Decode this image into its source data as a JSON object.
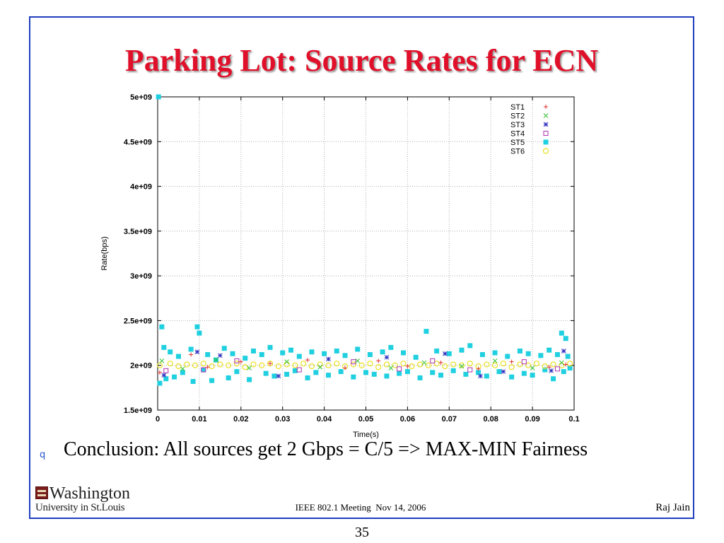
{
  "slide": {
    "title": "Parking Lot: Source Rates for ECN",
    "bullet_symbol": "q",
    "conclusion": "Conclusion: All sources get 2 Gbps = C/5 => MAX-MIN Fairness",
    "logo": {
      "line1": "Washington",
      "line2": "University in St.Louis"
    },
    "footer_center": "IEEE 802.1 Meeting  Nov 14, 2006",
    "footer_right": "Raj Jain",
    "page_number": "35"
  },
  "chart_data": {
    "type": "scatter",
    "xlabel": "Time(s)",
    "ylabel": "Rate(bps)",
    "xlim": [
      0,
      0.1
    ],
    "ylim": [
      1500000000,
      5000000000
    ],
    "x_ticks": [
      0,
      0.01,
      0.02,
      0.03,
      0.04,
      0.05,
      0.06,
      0.07,
      0.08,
      0.09,
      0.1
    ],
    "x_tick_labels": [
      "0",
      "0.01",
      "0.02",
      "0.03",
      "0.04",
      "0.05",
      "0.06",
      "0.07",
      "0.08",
      "0.09",
      "0.1"
    ],
    "y_ticks": [
      1500000000,
      2000000000,
      2500000000,
      3000000000,
      3500000000,
      4000000000,
      4500000000,
      5000000000
    ],
    "y_tick_labels": [
      "1.5e+09",
      "2e+09",
      "2.5e+09",
      "3e+09",
      "3.5e+09",
      "4e+09",
      "4.5e+09",
      "5e+09"
    ],
    "grid": true,
    "legend_position": "top-right",
    "series": [
      {
        "name": "ST1",
        "marker": "plus",
        "color": "#e03030",
        "points": [
          [
            0.0005,
            1920000000.0
          ],
          [
            0.008,
            2120000000.0
          ],
          [
            0.012,
            1980000000.0
          ],
          [
            0.02,
            2040000000.0
          ],
          [
            0.027,
            2020000000.0
          ],
          [
            0.036,
            2060000000.0
          ],
          [
            0.045,
            1970000000.0
          ],
          [
            0.053,
            2050000000.0
          ],
          [
            0.06,
            1990000000.0
          ],
          [
            0.068,
            2030000000.0
          ],
          [
            0.077,
            1960000000.0
          ],
          [
            0.085,
            2040000000.0
          ],
          [
            0.094,
            1980000000.0
          ],
          [
            0.098,
            2010000000.0
          ]
        ]
      },
      {
        "name": "ST2",
        "marker": "cross",
        "color": "#30c030",
        "points": [
          [
            0.001,
            2050000000.0
          ],
          [
            0.006,
            1960000000.0
          ],
          [
            0.014,
            2060000000.0
          ],
          [
            0.022,
            1970000000.0
          ],
          [
            0.031,
            2040000000.0
          ],
          [
            0.039,
            1980000000.0
          ],
          [
            0.048,
            2050000000.0
          ],
          [
            0.056,
            1970000000.0
          ],
          [
            0.064,
            2030000000.0
          ],
          [
            0.073,
            1990000000.0
          ],
          [
            0.081,
            2050000000.0
          ],
          [
            0.09,
            1970000000.0
          ],
          [
            0.097,
            2030000000.0
          ]
        ]
      },
      {
        "name": "ST3",
        "marker": "star",
        "color": "#3030c0",
        "points": [
          [
            0.0015,
            1890000000.0
          ],
          [
            0.0095,
            2150000000.0
          ],
          [
            0.015,
            2110000000.0
          ],
          [
            0.029,
            1880000000.0
          ],
          [
            0.041,
            2070000000.0
          ],
          [
            0.055,
            2090000000.0
          ],
          [
            0.069,
            2130000000.0
          ],
          [
            0.0775,
            1880000000.0
          ],
          [
            0.083,
            1930000000.0
          ],
          [
            0.0945,
            1940000000.0
          ],
          [
            0.0975,
            2160000000.0
          ]
        ]
      },
      {
        "name": "ST4",
        "marker": "square-open",
        "color": "#b030b0",
        "points": [
          [
            0.002,
            1940000000.0
          ],
          [
            0.011,
            1950000000.0
          ],
          [
            0.019,
            2050000000.0
          ],
          [
            0.034,
            1950000000.0
          ],
          [
            0.047,
            2040000000.0
          ],
          [
            0.058,
            1960000000.0
          ],
          [
            0.066,
            2050000000.0
          ],
          [
            0.075,
            1950000000.0
          ],
          [
            0.088,
            2040000000.0
          ],
          [
            0.096,
            1960000000.0
          ]
        ]
      },
      {
        "name": "ST5",
        "marker": "square-filled",
        "color": "#20d0e0",
        "points": [
          [
            0.0002,
            5000000000.0
          ],
          [
            0.0005,
            1800000000.0
          ],
          [
            0.001,
            2430000000.0
          ],
          [
            0.0015,
            2200000000.0
          ],
          [
            0.002,
            1850000000.0
          ],
          [
            0.003,
            2150000000.0
          ],
          [
            0.004,
            1870000000.0
          ],
          [
            0.005,
            2100000000.0
          ],
          [
            0.006,
            1920000000.0
          ],
          [
            0.008,
            2180000000.0
          ],
          [
            0.0085,
            1820000000.0
          ],
          [
            0.0095,
            2430000000.0
          ],
          [
            0.01,
            2360000000.0
          ],
          [
            0.011,
            1950000000.0
          ],
          [
            0.012,
            2120000000.0
          ],
          [
            0.013,
            1830000000.0
          ],
          [
            0.014,
            2060000000.0
          ],
          [
            0.016,
            2190000000.0
          ],
          [
            0.017,
            1860000000.0
          ],
          [
            0.018,
            2130000000.0
          ],
          [
            0.019,
            1930000000.0
          ],
          [
            0.021,
            2080000000.0
          ],
          [
            0.022,
            1840000000.0
          ],
          [
            0.023,
            2160000000.0
          ],
          [
            0.025,
            2120000000.0
          ],
          [
            0.026,
            1910000000.0
          ],
          [
            0.027,
            2200000000.0
          ],
          [
            0.028,
            1880000000.0
          ],
          [
            0.03,
            2140000000.0
          ],
          [
            0.031,
            1900000000.0
          ],
          [
            0.032,
            2170000000.0
          ],
          [
            0.033,
            1940000000.0
          ],
          [
            0.034,
            2100000000.0
          ],
          [
            0.036,
            1860000000.0
          ],
          [
            0.037,
            2150000000.0
          ],
          [
            0.038,
            1920000000.0
          ],
          [
            0.04,
            2130000000.0
          ],
          [
            0.041,
            1890000000.0
          ],
          [
            0.043,
            2160000000.0
          ],
          [
            0.044,
            1930000000.0
          ],
          [
            0.045,
            2110000000.0
          ],
          [
            0.047,
            1870000000.0
          ],
          [
            0.048,
            2180000000.0
          ],
          [
            0.05,
            1920000000.0
          ],
          [
            0.051,
            2120000000.0
          ],
          [
            0.052,
            1900000000.0
          ],
          [
            0.054,
            2150000000.0
          ],
          [
            0.055,
            1880000000.0
          ],
          [
            0.056,
            2200000000.0
          ],
          [
            0.058,
            1910000000.0
          ],
          [
            0.059,
            2140000000.0
          ],
          [
            0.06,
            1930000000.0
          ],
          [
            0.062,
            2090000000.0
          ],
          [
            0.063,
            1860000000.0
          ],
          [
            0.0645,
            2380000000.0
          ],
          [
            0.066,
            1920000000.0
          ],
          [
            0.067,
            2160000000.0
          ],
          [
            0.068,
            1890000000.0
          ],
          [
            0.07,
            2130000000.0
          ],
          [
            0.071,
            1940000000.0
          ],
          [
            0.073,
            2170000000.0
          ],
          [
            0.074,
            1900000000.0
          ],
          [
            0.075,
            2220000000.0
          ],
          [
            0.077,
            1920000000.0
          ],
          [
            0.078,
            2120000000.0
          ],
          [
            0.079,
            1880000000.0
          ],
          [
            0.081,
            2140000000.0
          ],
          [
            0.082,
            1930000000.0
          ],
          [
            0.084,
            2100000000.0
          ],
          [
            0.085,
            1870000000.0
          ],
          [
            0.087,
            2160000000.0
          ],
          [
            0.088,
            1910000000.0
          ],
          [
            0.089,
            2130000000.0
          ],
          [
            0.09,
            1890000000.0
          ],
          [
            0.092,
            2110000000.0
          ],
          [
            0.093,
            1950000000.0
          ],
          [
            0.094,
            2170000000.0
          ],
          [
            0.095,
            1850000000.0
          ],
          [
            0.096,
            2120000000.0
          ],
          [
            0.097,
            2360000000.0
          ],
          [
            0.0975,
            1930000000.0
          ],
          [
            0.098,
            2300000000.0
          ],
          [
            0.0985,
            2100000000.0
          ],
          [
            0.099,
            1970000000.0
          ]
        ]
      },
      {
        "name": "ST6",
        "marker": "circle-open",
        "color": "#e8e020",
        "points": [
          [
            0.0005,
            2000000000.0
          ],
          [
            0.003,
            2020000000.0
          ],
          [
            0.005,
            1990000000.0
          ],
          [
            0.007,
            2010000000.0
          ],
          [
            0.009,
            2000000000.0
          ],
          [
            0.011,
            2020000000.0
          ],
          [
            0.013,
            1990000000.0
          ],
          [
            0.015,
            2010000000.0
          ],
          [
            0.017,
            2000000000.0
          ],
          [
            0.019,
            2020000000.0
          ],
          [
            0.021,
            1980000000.0
          ],
          [
            0.023,
            2010000000.0
          ],
          [
            0.025,
            2000000000.0
          ],
          [
            0.027,
            2020000000.0
          ],
          [
            0.029,
            1990000000.0
          ],
          [
            0.031,
            2010000000.0
          ],
          [
            0.033,
            2000000000.0
          ],
          [
            0.035,
            2020000000.0
          ],
          [
            0.037,
            1990000000.0
          ],
          [
            0.039,
            2010000000.0
          ],
          [
            0.041,
            2000000000.0
          ],
          [
            0.043,
            2020000000.0
          ],
          [
            0.045,
            1990000000.0
          ],
          [
            0.047,
            2010000000.0
          ],
          [
            0.049,
            2000000000.0
          ],
          [
            0.051,
            2020000000.0
          ],
          [
            0.053,
            1980000000.0
          ],
          [
            0.055,
            2010000000.0
          ],
          [
            0.057,
            2000000000.0
          ],
          [
            0.059,
            2020000000.0
          ],
          [
            0.061,
            1990000000.0
          ],
          [
            0.063,
            2010000000.0
          ],
          [
            0.065,
            2000000000.0
          ],
          [
            0.067,
            2020000000.0
          ],
          [
            0.069,
            1990000000.0
          ],
          [
            0.071,
            2010000000.0
          ],
          [
            0.073,
            2000000000.0
          ],
          [
            0.075,
            2020000000.0
          ],
          [
            0.077,
            1990000000.0
          ],
          [
            0.079,
            2010000000.0
          ],
          [
            0.081,
            2000000000.0
          ],
          [
            0.083,
            2020000000.0
          ],
          [
            0.085,
            1980000000.0
          ],
          [
            0.087,
            2010000000.0
          ],
          [
            0.089,
            2000000000.0
          ],
          [
            0.091,
            2020000000.0
          ],
          [
            0.093,
            1990000000.0
          ],
          [
            0.095,
            2010000000.0
          ],
          [
            0.097,
            2000000000.0
          ],
          [
            0.099,
            2020000000.0
          ]
        ]
      }
    ]
  }
}
